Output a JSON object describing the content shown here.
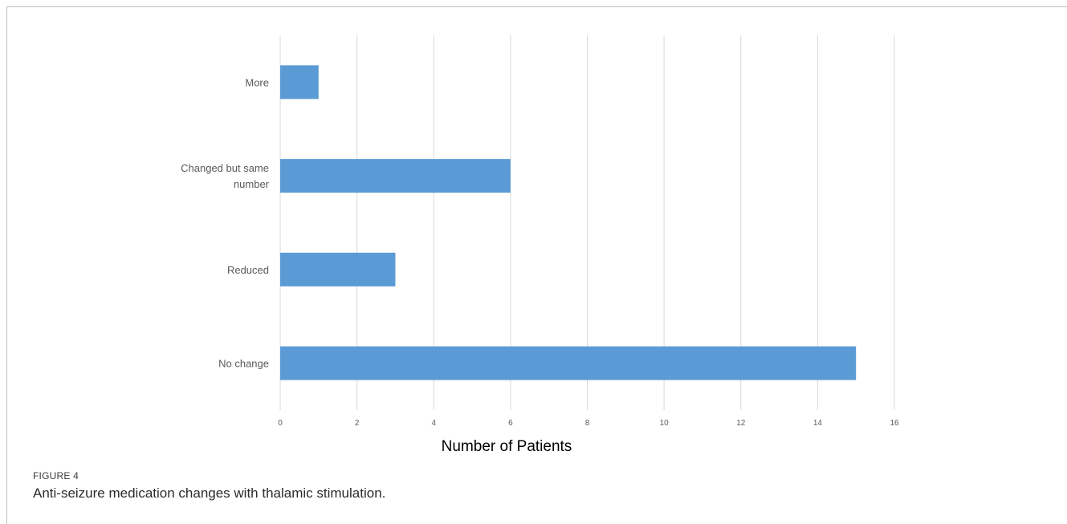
{
  "figure": {
    "label": "FIGURE 4",
    "caption": "Anti-seizure medication changes with thalamic stimulation."
  },
  "chart_data": {
    "type": "bar",
    "orientation": "horizontal",
    "categories": [
      "More",
      "Changed but same number",
      "Reduced",
      "No change"
    ],
    "category_label_lines": [
      [
        "More"
      ],
      [
        "Changed but same",
        "number"
      ],
      [
        "Reduced"
      ],
      [
        "No change"
      ]
    ],
    "values": [
      1,
      6,
      3,
      15
    ],
    "xlabel": "Number of Patients",
    "ylabel": "",
    "xlim": [
      0,
      16
    ],
    "xticks": [
      0,
      2,
      4,
      6,
      8,
      10,
      12,
      14,
      16
    ],
    "grid": true,
    "legend": "none",
    "bar_color": "#5b9bd5",
    "grid_color": "#d9d9d9"
  }
}
